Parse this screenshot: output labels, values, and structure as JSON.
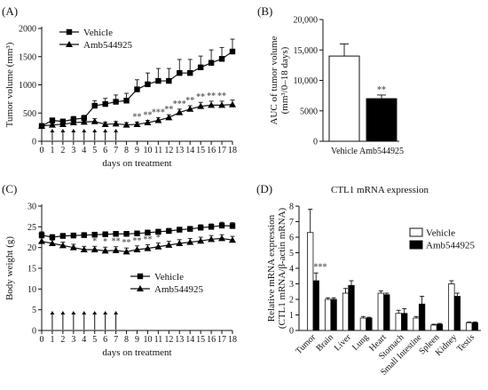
{
  "chart_data": [
    {
      "id": "A",
      "type": "line",
      "panel_label": "(A)",
      "xlabel": "days on treatment",
      "ylabel": "Tumor volume (mm³)",
      "xlim": [
        0,
        18
      ],
      "ylim": [
        0,
        2000
      ],
      "xticks": [
        0,
        1,
        2,
        3,
        4,
        5,
        6,
        7,
        8,
        9,
        10,
        11,
        12,
        13,
        14,
        15,
        16,
        17,
        18
      ],
      "yticks": [
        0,
        500,
        1000,
        1500,
        2000
      ],
      "legend_position": "top-left",
      "x": [
        0,
        1,
        2,
        3,
        4,
        5,
        6,
        7,
        8,
        9,
        10,
        11,
        12,
        13,
        14,
        15,
        16,
        17,
        18
      ],
      "series": [
        {
          "name": "Vehicle",
          "marker": "square",
          "values": [
            270,
            370,
            350,
            390,
            410,
            630,
            660,
            700,
            720,
            920,
            1010,
            1070,
            1070,
            1210,
            1210,
            1310,
            1390,
            1460,
            1590
          ],
          "errors": [
            40,
            40,
            40,
            50,
            50,
            90,
            100,
            120,
            130,
            170,
            200,
            220,
            220,
            240,
            240,
            200,
            230,
            200,
            220
          ]
        },
        {
          "name": "Amb544925",
          "marker": "triangle",
          "values": [
            270,
            290,
            300,
            330,
            340,
            350,
            300,
            310,
            290,
            300,
            330,
            370,
            420,
            510,
            570,
            620,
            640,
            640,
            650
          ],
          "errors": [
            40,
            30,
            40,
            40,
            40,
            50,
            40,
            40,
            40,
            40,
            40,
            50,
            50,
            60,
            60,
            70,
            70,
            70,
            80
          ]
        }
      ],
      "annotations": [
        {
          "x": 9,
          "text": "**"
        },
        {
          "x": 10,
          "text": "**"
        },
        {
          "x": 11,
          "text": "***"
        },
        {
          "x": 12,
          "text": "**"
        },
        {
          "x": 13,
          "text": "***"
        },
        {
          "x": 14,
          "text": "**"
        },
        {
          "x": 15,
          "text": "**"
        },
        {
          "x": 16,
          "text": "**"
        },
        {
          "x": 17,
          "text": "**"
        }
      ],
      "dosing_days": [
        1,
        2,
        3,
        4,
        5,
        6,
        7
      ]
    },
    {
      "id": "B",
      "type": "bar",
      "panel_label": "(B)",
      "ylabel": "AUC of tumor volume (mm³/0–18 days)",
      "categories": [
        "Vehicle",
        "Amb544925"
      ],
      "values": [
        14000,
        7000
      ],
      "errors": [
        2000,
        600
      ],
      "fills": [
        "#ffffff",
        "#000000"
      ],
      "ylim": [
        0,
        20000
      ],
      "yticks": [
        0,
        5000,
        10000,
        15000,
        20000
      ],
      "ytick_labels": [
        "0",
        "5000",
        "10,000",
        "15,000",
        "20,000"
      ],
      "annotations": [
        {
          "category": "Amb544925",
          "text": "**"
        }
      ]
    },
    {
      "id": "C",
      "type": "line",
      "panel_label": "(C)",
      "xlabel": "days on treatment",
      "ylabel": "Body weight (g)",
      "xlim": [
        0,
        18
      ],
      "ylim": [
        0,
        30
      ],
      "xticks": [
        0,
        1,
        2,
        3,
        4,
        5,
        6,
        7,
        8,
        9,
        10,
        11,
        12,
        13,
        14,
        15,
        16,
        17,
        18
      ],
      "yticks": [
        0,
        5,
        10,
        15,
        20,
        25,
        30
      ],
      "legend_position": "center-right",
      "x": [
        0,
        1,
        2,
        3,
        4,
        5,
        6,
        7,
        8,
        9,
        10,
        11,
        12,
        13,
        14,
        15,
        16,
        17,
        18
      ],
      "series": [
        {
          "name": "Vehicle",
          "marker": "square",
          "values": [
            23,
            22.5,
            22.8,
            22.9,
            23,
            23.1,
            23.2,
            23.3,
            23.3,
            23.4,
            23.6,
            23.8,
            24,
            24.3,
            24.5,
            24.8,
            25,
            25.3,
            25.2
          ],
          "errors": [
            0.8,
            0.6,
            0.6,
            0.6,
            0.6,
            0.6,
            0.6,
            0.6,
            0.6,
            0.6,
            0.6,
            0.6,
            0.6,
            0.6,
            0.6,
            0.7,
            0.7,
            0.8,
            0.8
          ]
        },
        {
          "name": "Amb544925",
          "marker": "triangle",
          "values": [
            21.5,
            21,
            20.5,
            20,
            19.5,
            19.5,
            19.2,
            19.3,
            19,
            19.5,
            19.8,
            20.2,
            20.6,
            21,
            21.3,
            21.6,
            22,
            22.2,
            21.8
          ],
          "errors": [
            0.8,
            0.8,
            0.8,
            0.8,
            0.8,
            0.8,
            0.9,
            0.9,
            0.9,
            0.9,
            0.9,
            0.9,
            0.9,
            0.9,
            0.9,
            0.9,
            0.9,
            0.9,
            0.9
          ]
        }
      ],
      "annotations": [
        {
          "x": 5,
          "text": "*"
        },
        {
          "x": 6,
          "text": "*"
        },
        {
          "x": 7,
          "text": "**"
        },
        {
          "x": 8,
          "text": "**"
        },
        {
          "x": 9,
          "text": "**"
        },
        {
          "x": 10,
          "text": "**"
        },
        {
          "x": 11,
          "text": "*"
        }
      ],
      "dosing_days": [
        1,
        2,
        3,
        4,
        5,
        6,
        7
      ]
    },
    {
      "id": "D",
      "type": "bar",
      "panel_label": "(D)",
      "title": "CTL1 mRNA expression",
      "ylabel": "Relative mRNA expression (CTL1 mRNA/β-actin mRNA)",
      "categories": [
        "Tumor",
        "Brain",
        "Liver",
        "Lung",
        "Heart",
        "Stomach",
        "Small Intestine",
        "Spleen",
        "Kidney",
        "Testis"
      ],
      "ylim": [
        0,
        8
      ],
      "yticks": [
        0,
        1,
        2,
        3,
        4,
        5,
        6,
        7,
        8
      ],
      "legend_position": "top-right",
      "series": [
        {
          "name": "Vehicle",
          "fill": "#ffffff",
          "values": [
            6.3,
            2.0,
            2.4,
            0.8,
            2.4,
            1.1,
            0.8,
            0.35,
            3.0,
            0.5
          ],
          "errors": [
            1.5,
            0.1,
            0.3,
            0.1,
            0.15,
            0.2,
            0.1,
            0.05,
            0.2,
            0.05
          ]
        },
        {
          "name": "Amb544925",
          "fill": "#000000",
          "values": [
            3.2,
            2.0,
            2.9,
            0.8,
            2.3,
            1.1,
            1.7,
            0.4,
            2.2,
            0.5
          ],
          "errors": [
            0.5,
            0.1,
            0.3,
            0.05,
            0.1,
            0.3,
            0.5,
            0.05,
            0.2,
            0.05
          ]
        }
      ],
      "annotations": [
        {
          "category": "Tumor",
          "text": "***"
        }
      ]
    }
  ]
}
